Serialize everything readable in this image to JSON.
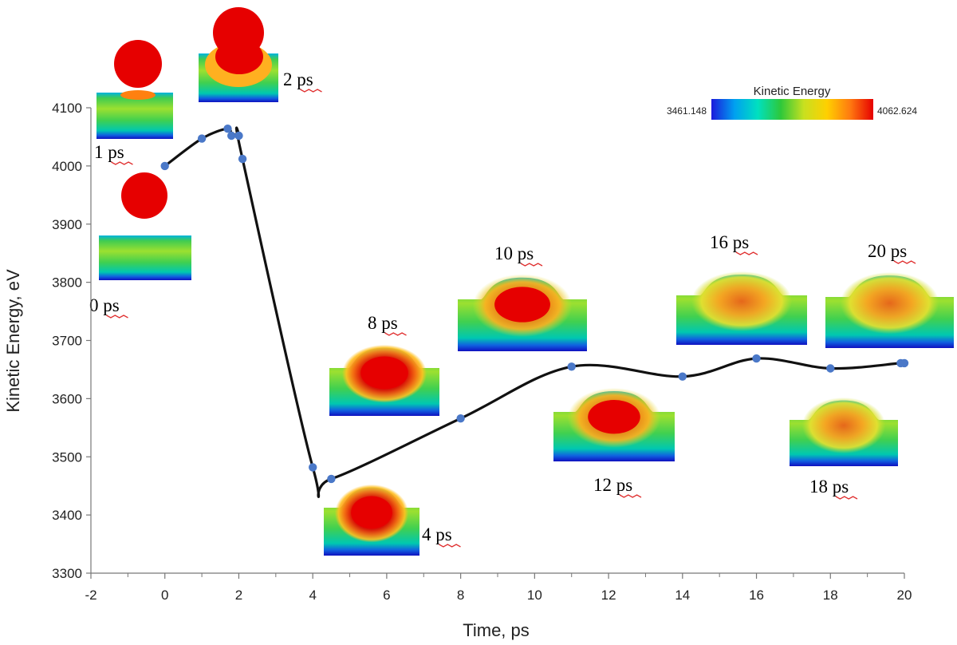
{
  "chart_data": {
    "type": "line",
    "title": "",
    "xlabel": "Time, ps",
    "ylabel": "Kinetic Energy, eV",
    "xlim": [
      -2,
      20
    ],
    "ylim": [
      3300,
      4100
    ],
    "xticks": [
      "-2",
      "0",
      "2",
      "4",
      "6",
      "8",
      "10",
      "12",
      "14",
      "16",
      "18",
      "20"
    ],
    "yticks": [
      "3300",
      "3400",
      "3500",
      "3600",
      "3700",
      "3800",
      "3900",
      "4000",
      "4100"
    ],
    "grid": false,
    "series": [
      {
        "name": "Kinetic Energy",
        "x": [
          0,
          1,
          1.7,
          1.8,
          2,
          2.1,
          4,
          4.5,
          8,
          11,
          14,
          16,
          18,
          19.9,
          20
        ],
        "y": [
          4000,
          4047,
          4064,
          4052,
          4052,
          4012,
          3482,
          3462,
          3566,
          3655,
          3638,
          3669,
          3652,
          3661,
          3661
        ]
      }
    ],
    "colorbar": {
      "title": "Kinetic Energy",
      "min_label": "3461.148",
      "max_label": "4062.624",
      "colors": [
        "#1a1adc",
        "#00a0f0",
        "#00e0c0",
        "#2ec83a",
        "#c8e020",
        "#ffd000",
        "#ff7a10",
        "#e60000"
      ]
    },
    "snapshots": [
      {
        "label": "0 ps",
        "stage": "drop"
      },
      {
        "label": "1 ps",
        "stage": "contact"
      },
      {
        "label": "2 ps",
        "stage": "sinking"
      },
      {
        "label": "4 ps",
        "stage": "embedded"
      },
      {
        "label": "8 ps",
        "stage": "embedded"
      },
      {
        "label": "10 ps",
        "stage": "mound"
      },
      {
        "label": "12 ps",
        "stage": "mound"
      },
      {
        "label": "16 ps",
        "stage": "cooling"
      },
      {
        "label": "18 ps",
        "stage": "cooling"
      },
      {
        "label": "20 ps",
        "stage": "cooling"
      }
    ]
  }
}
